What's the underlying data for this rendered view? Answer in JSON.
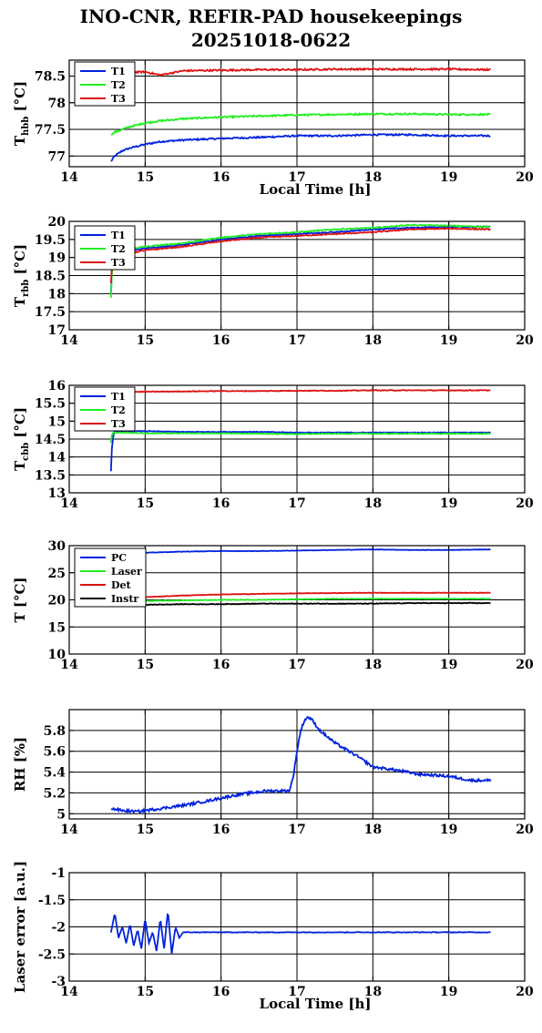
{
  "title": {
    "line1": "INO-CNR, REFIR-PAD housekeepings",
    "line2": "20251018-0622"
  },
  "colors": {
    "blue": "#0022dd",
    "green": "#22ee22",
    "red": "#dd1111",
    "black": "#000000"
  },
  "chart_data": [
    {
      "type": "line",
      "ylabel": "T_hbb [°C]",
      "xlabel": "Local Time [h]",
      "xlim": [
        14,
        20
      ],
      "ylim": [
        76.8,
        78.8
      ],
      "xticks": [
        "14",
        "15",
        "16",
        "17",
        "18",
        "19",
        "20"
      ],
      "yticks": [
        {
          "v": 77,
          "t": "77"
        },
        {
          "v": 77.5,
          "t": "77.5"
        },
        {
          "v": 78,
          "t": "78"
        },
        {
          "v": 78.5,
          "t": "78.5"
        }
      ],
      "legend": [
        "T1",
        "T2",
        "T3"
      ],
      "grid": true,
      "legend_position": "top-left",
      "x": [
        14.55,
        14.6,
        14.7,
        14.8,
        15,
        15.2,
        15.5,
        16,
        16.5,
        17,
        17.5,
        18,
        18.5,
        19,
        19.5,
        19.55
      ],
      "series": [
        {
          "name": "T1",
          "color": "blue",
          "values": [
            76.9,
            77.0,
            77.1,
            77.15,
            77.22,
            77.27,
            77.3,
            77.33,
            77.35,
            77.38,
            77.38,
            77.4,
            77.4,
            77.38,
            77.38,
            77.38
          ]
        },
        {
          "name": "T2",
          "color": "green",
          "values": [
            77.4,
            77.45,
            77.5,
            77.55,
            77.62,
            77.66,
            77.7,
            77.73,
            77.75,
            77.77,
            77.78,
            77.79,
            77.79,
            77.78,
            77.78,
            77.78
          ]
        },
        {
          "name": "T3",
          "color": "red",
          "values": [
            78.56,
            78.56,
            78.55,
            78.57,
            78.58,
            78.52,
            78.6,
            78.61,
            78.62,
            78.62,
            78.63,
            78.63,
            78.63,
            78.63,
            78.62,
            78.62
          ]
        }
      ]
    },
    {
      "type": "line",
      "ylabel": "T_rbb [°C]",
      "xlim": [
        14,
        20
      ],
      "ylim": [
        17,
        20
      ],
      "xticks": [
        "14",
        "15",
        "16",
        "17",
        "18",
        "19",
        "20"
      ],
      "yticks": [
        {
          "v": 17,
          "t": "17"
        },
        {
          "v": 17.5,
          "t": "17.5"
        },
        {
          "v": 18,
          "t": "18"
        },
        {
          "v": 18.5,
          "t": "18.5"
        },
        {
          "v": 19,
          "t": "19"
        },
        {
          "v": 19.5,
          "t": "19.5"
        },
        {
          "v": 20,
          "t": "20"
        }
      ],
      "legend": [
        "T1",
        "T2",
        "T3"
      ],
      "grid": true,
      "legend_position": "top-left",
      "x": [
        14.55,
        14.56,
        14.58,
        14.6,
        14.7,
        14.8,
        15,
        15.5,
        16,
        16.5,
        17,
        17.5,
        18,
        18.5,
        19,
        19.5,
        19.55
      ],
      "series": [
        {
          "name": "T1",
          "color": "blue",
          "values": [
            18.0,
            18.6,
            19.0,
            19.1,
            19.15,
            19.2,
            19.25,
            19.35,
            19.5,
            19.6,
            19.65,
            19.7,
            19.78,
            19.82,
            19.85,
            19.85,
            19.85
          ]
        },
        {
          "name": "T2",
          "color": "green",
          "values": [
            17.9,
            18.5,
            19.0,
            19.15,
            19.2,
            19.25,
            19.3,
            19.4,
            19.55,
            19.65,
            19.7,
            19.78,
            19.82,
            19.9,
            19.88,
            19.85,
            19.85
          ]
        },
        {
          "name": "T3",
          "color": "red",
          "values": [
            18.3,
            18.7,
            19.0,
            19.05,
            19.08,
            19.12,
            19.2,
            19.3,
            19.45,
            19.55,
            19.6,
            19.65,
            19.7,
            19.78,
            19.8,
            19.78,
            19.78
          ]
        }
      ]
    },
    {
      "type": "line",
      "ylabel": "T_cbb [°C]",
      "xlim": [
        14,
        20
      ],
      "ylim": [
        13,
        16
      ],
      "xticks": [
        "14",
        "15",
        "16",
        "17",
        "18",
        "19",
        "20"
      ],
      "yticks": [
        {
          "v": 13,
          "t": "13"
        },
        {
          "v": 13.5,
          "t": "13.5"
        },
        {
          "v": 14,
          "t": "14"
        },
        {
          "v": 14.5,
          "t": "14.5"
        },
        {
          "v": 15,
          "t": "15"
        },
        {
          "v": 15.5,
          "t": "15.5"
        },
        {
          "v": 16,
          "t": "16"
        }
      ],
      "legend": [
        "T1",
        "T2",
        "T3"
      ],
      "grid": true,
      "legend_position": "top-left",
      "x": [
        14.55,
        14.56,
        14.58,
        14.6,
        14.8,
        15,
        15.5,
        16,
        16.5,
        17,
        17.5,
        18,
        18.5,
        19,
        19.5,
        19.55
      ],
      "series": [
        {
          "name": "T1",
          "color": "blue",
          "values": [
            13.6,
            14.2,
            14.6,
            14.7,
            14.72,
            14.72,
            14.7,
            14.7,
            14.7,
            14.68,
            14.68,
            14.68,
            14.68,
            14.68,
            14.68,
            14.68
          ]
        },
        {
          "name": "T2",
          "color": "green",
          "values": [
            14.4,
            14.6,
            14.68,
            14.68,
            14.68,
            14.66,
            14.66,
            14.66,
            14.65,
            14.64,
            14.65,
            14.65,
            14.65,
            14.65,
            14.65,
            14.65
          ]
        },
        {
          "name": "T3",
          "color": "red",
          "values": [
            15.8,
            15.8,
            15.8,
            15.8,
            15.82,
            15.82,
            15.83,
            15.84,
            15.84,
            15.85,
            15.85,
            15.86,
            15.86,
            15.86,
            15.86,
            15.86
          ]
        }
      ]
    },
    {
      "type": "line",
      "ylabel": "T [°C]",
      "xlim": [
        14,
        20
      ],
      "ylim": [
        10,
        30
      ],
      "xticks": [
        "14",
        "15",
        "16",
        "17",
        "18",
        "19",
        "20"
      ],
      "yticks": [
        {
          "v": 10,
          "t": "10"
        },
        {
          "v": 15,
          "t": "15"
        },
        {
          "v": 20,
          "t": "20"
        },
        {
          "v": 25,
          "t": "25"
        },
        {
          "v": 30,
          "t": "30"
        }
      ],
      "legend": [
        "PC",
        "Laser",
        "Det",
        "Instr"
      ],
      "grid": true,
      "legend_position": "top-left",
      "x": [
        14.55,
        14.7,
        15,
        15.5,
        16,
        16.5,
        17,
        17.5,
        18,
        18.5,
        19,
        19.55
      ],
      "series": [
        {
          "name": "PC",
          "color": "blue",
          "values": [
            28.3,
            28.5,
            28.7,
            28.9,
            29.0,
            29.0,
            29.1,
            29.2,
            29.3,
            29.2,
            29.2,
            29.3
          ]
        },
        {
          "name": "Laser",
          "color": "green",
          "values": [
            19.6,
            19.7,
            19.8,
            19.9,
            20.0,
            20.0,
            20.1,
            20.2,
            20.2,
            20.2,
            20.2,
            20.2
          ]
        },
        {
          "name": "Det",
          "color": "red",
          "values": [
            19.8,
            20.1,
            20.5,
            20.8,
            21.0,
            21.1,
            21.2,
            21.25,
            21.3,
            21.3,
            21.3,
            21.3
          ]
        },
        {
          "name": "Instr",
          "color": "black",
          "values": [
            19.0,
            19.0,
            19.1,
            19.2,
            19.2,
            19.3,
            19.3,
            19.3,
            19.3,
            19.4,
            19.4,
            19.4
          ]
        }
      ]
    },
    {
      "type": "line",
      "ylabel": "RH [%]",
      "xlim": [
        14,
        20
      ],
      "ylim": [
        4.95,
        6.0
      ],
      "xticks": [
        "14",
        "15",
        "16",
        "17",
        "18",
        "19",
        "20"
      ],
      "yticks": [
        {
          "v": 5,
          "t": "5"
        },
        {
          "v": 5.2,
          "t": "5.2"
        },
        {
          "v": 5.4,
          "t": "5.4"
        },
        {
          "v": 5.6,
          "t": "5.6"
        },
        {
          "v": 5.8,
          "t": "5.8"
        }
      ],
      "grid": true,
      "x": [
        14.55,
        14.7,
        14.9,
        15.2,
        15.5,
        15.8,
        16.2,
        16.6,
        16.9,
        16.95,
        17.0,
        17.05,
        17.1,
        17.15,
        17.2,
        17.3,
        17.5,
        17.8,
        18.0,
        18.3,
        18.6,
        19.0,
        19.3,
        19.55
      ],
      "series": [
        {
          "name": "RH",
          "color": "blue",
          "values": [
            5.05,
            5.03,
            5.02,
            5.05,
            5.08,
            5.12,
            5.18,
            5.22,
            5.22,
            5.35,
            5.6,
            5.8,
            5.9,
            5.93,
            5.9,
            5.8,
            5.68,
            5.55,
            5.45,
            5.42,
            5.38,
            5.36,
            5.32,
            5.32
          ]
        }
      ]
    },
    {
      "type": "line",
      "ylabel": "Laser error [a.u.]",
      "xlabel": "Local Time [h]",
      "xlim": [
        14,
        20
      ],
      "ylim": [
        -3,
        -1
      ],
      "xticks": [
        "14",
        "15",
        "16",
        "17",
        "18",
        "19",
        "20"
      ],
      "yticks": [
        {
          "v": -3,
          "t": "-3"
        },
        {
          "v": -2.5,
          "t": "-2.5"
        },
        {
          "v": -2,
          "t": "-2"
        },
        {
          "v": -1.5,
          "t": "-1.5"
        },
        {
          "v": -1,
          "t": "-1"
        }
      ],
      "grid": true,
      "x": [
        14.55,
        14.6,
        14.65,
        14.7,
        14.75,
        14.8,
        14.85,
        14.9,
        14.95,
        15.0,
        15.05,
        15.1,
        15.15,
        15.2,
        15.25,
        15.3,
        15.35,
        15.4,
        15.45,
        15.5,
        15.6,
        16,
        16.5,
        17,
        17.5,
        18,
        18.5,
        19,
        19.55
      ],
      "series": [
        {
          "name": "Laser error",
          "color": "blue",
          "values": [
            -2.1,
            -1.75,
            -2.2,
            -2.0,
            -2.3,
            -1.95,
            -2.35,
            -2.05,
            -2.4,
            -1.85,
            -2.3,
            -2.1,
            -2.45,
            -1.85,
            -2.4,
            -1.7,
            -2.5,
            -2.0,
            -2.2,
            -2.1,
            -2.1,
            -2.1,
            -2.1,
            -2.1,
            -2.1,
            -2.1,
            -2.1,
            -2.1,
            -2.1
          ]
        }
      ]
    }
  ]
}
